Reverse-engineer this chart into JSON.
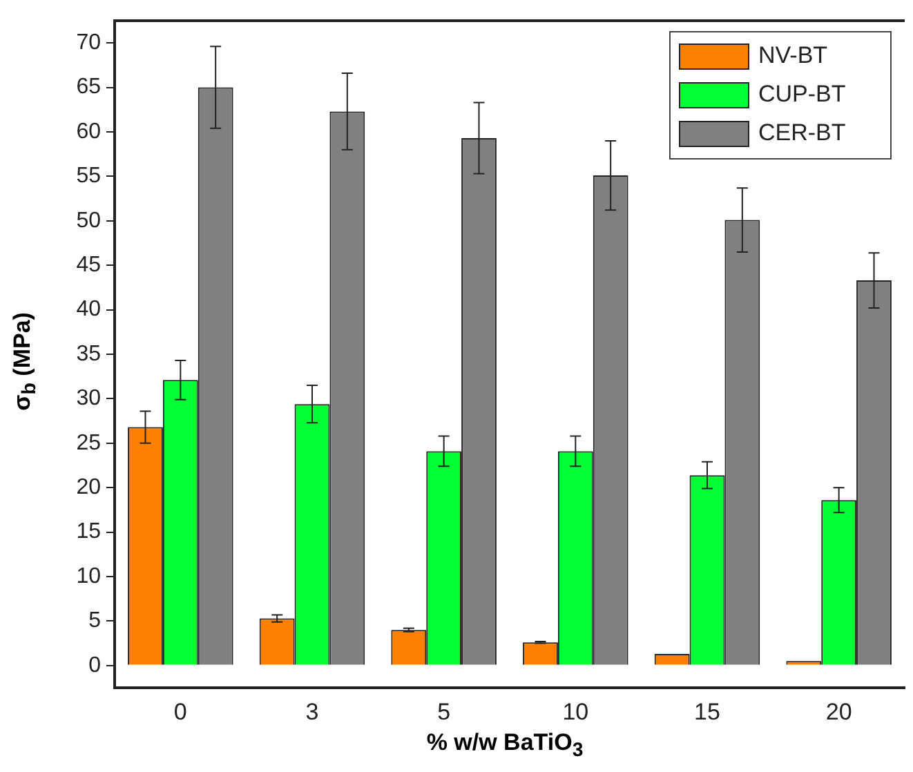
{
  "chart_data": {
    "type": "bar",
    "xlabel": "% w/w BaTiO$_{3}$",
    "ylabel": "σ$_{b}$ (MPa)",
    "categories": [
      "0",
      "3",
      "5",
      "10",
      "15",
      "20"
    ],
    "series": [
      {
        "name": "NV-BT",
        "color": "#ff8000",
        "values": [
          26.8,
          5.3,
          4.0,
          2.6,
          1.3,
          0.5
        ],
        "errors": [
          1.8,
          0.4,
          0.2,
          0.1,
          null,
          null
        ]
      },
      {
        "name": "CUP-BT",
        "color": "#00ff33",
        "values": [
          32.1,
          29.4,
          24.1,
          24.1,
          21.4,
          18.6
        ],
        "errors": [
          2.2,
          2.1,
          1.7,
          1.7,
          1.5,
          1.4
        ]
      },
      {
        "name": "CER-BT",
        "color": "#808080",
        "values": [
          65.0,
          62.3,
          59.3,
          55.1,
          50.1,
          43.3
        ],
        "errors": [
          4.6,
          4.3,
          4.0,
          3.9,
          3.6,
          3.1
        ]
      }
    ],
    "ylim": [
      -2.5,
      72.5
    ],
    "yticks": [
      0,
      5,
      10,
      15,
      20,
      25,
      30,
      35,
      40,
      45,
      50,
      55,
      60,
      65,
      70
    ],
    "grid": false,
    "legend": "top right"
  }
}
